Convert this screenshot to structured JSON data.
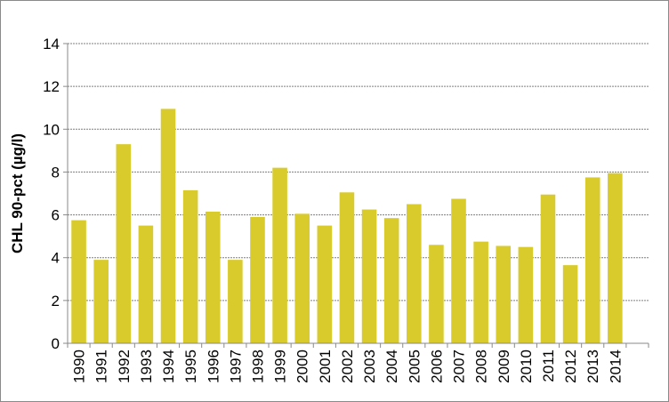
{
  "chart_data": {
    "type": "bar",
    "title": "",
    "xlabel": "",
    "ylabel": "CHL 90-pct (µg/l)",
    "categories": [
      "1990",
      "1991",
      "1992",
      "1993",
      "1994",
      "1995",
      "1996",
      "1997",
      "1998",
      "1999",
      "2000",
      "2001",
      "2002",
      "2003",
      "2004",
      "2005",
      "2006",
      "2007",
      "2008",
      "2009",
      "2010",
      "2011",
      "2012",
      "2013",
      "2014"
    ],
    "values": [
      5.75,
      3.9,
      9.3,
      5.5,
      10.95,
      7.15,
      6.15,
      3.9,
      5.9,
      8.2,
      6.05,
      5.5,
      7.05,
      6.25,
      5.85,
      6.5,
      4.6,
      6.75,
      4.75,
      4.55,
      4.5,
      6.95,
      3.65,
      7.75,
      7.95
    ],
    "ylim": [
      0,
      14
    ],
    "yticks": [
      0,
      2,
      4,
      6,
      8,
      10,
      12,
      14
    ],
    "grid": true,
    "legend": "none",
    "colors": {
      "bar": "#d9cb2c",
      "grid": "#7f7f7f",
      "axis": "#8a8a8a"
    }
  }
}
